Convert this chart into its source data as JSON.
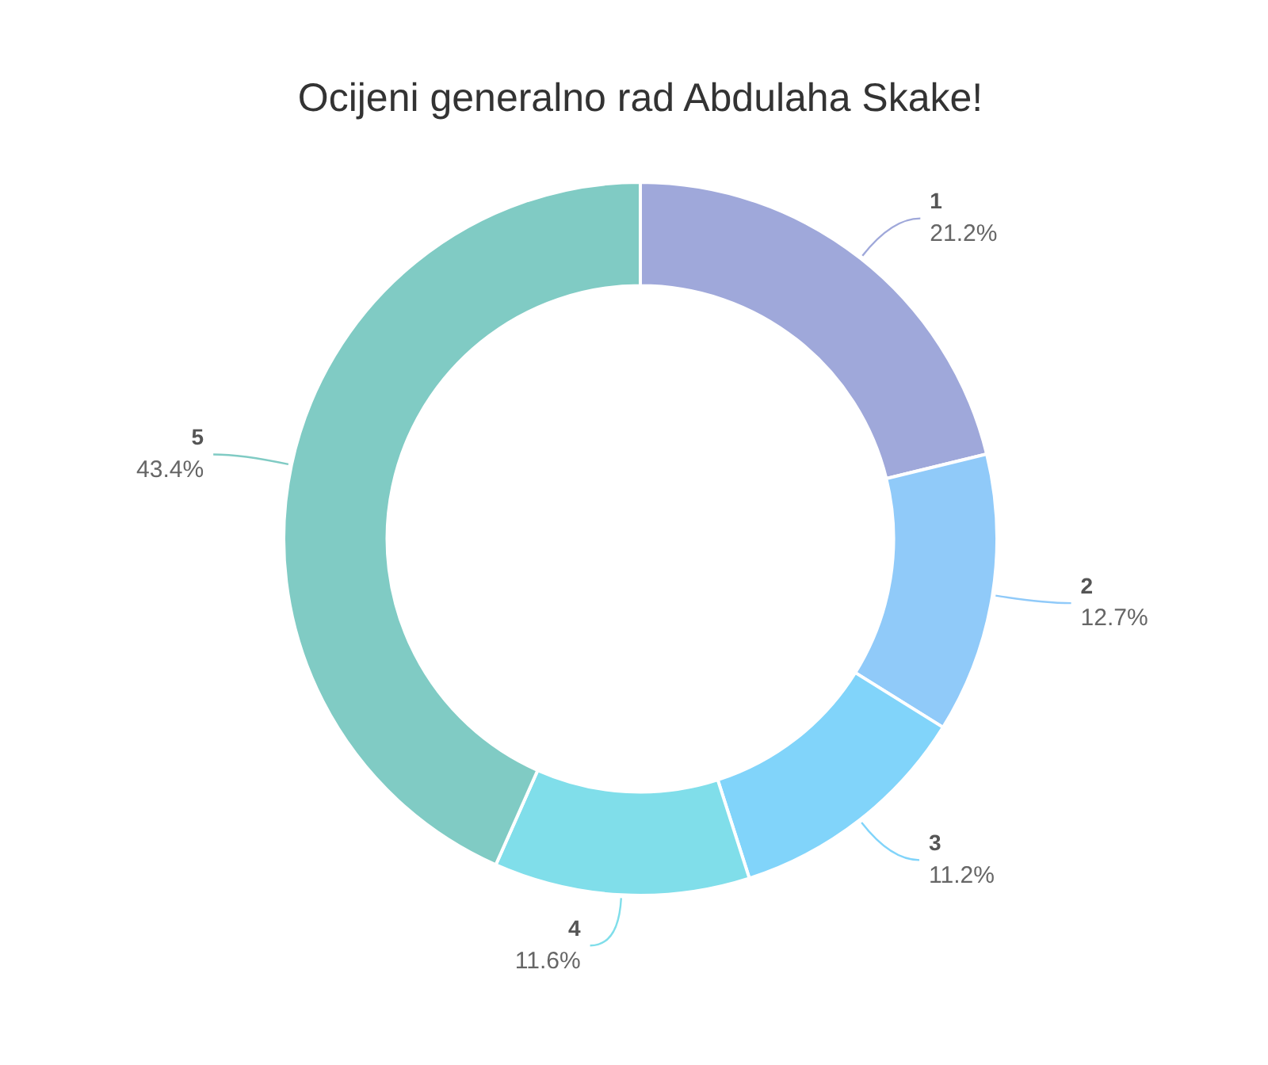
{
  "chart_data": {
    "type": "donut",
    "title": "Ocijeni generalno rad Abdulaha Skake!",
    "categories": [
      "1",
      "2",
      "3",
      "4",
      "5"
    ],
    "values": [
      21.2,
      12.7,
      11.2,
      11.6,
      43.4
    ],
    "value_labels": [
      "21.2%",
      "12.7%",
      "11.2%",
      "11.6%",
      "43.4%"
    ],
    "colors": [
      "#9fa8da",
      "#90caf9",
      "#81d4fa",
      "#80deea",
      "#80cbc4"
    ],
    "legend": false
  }
}
